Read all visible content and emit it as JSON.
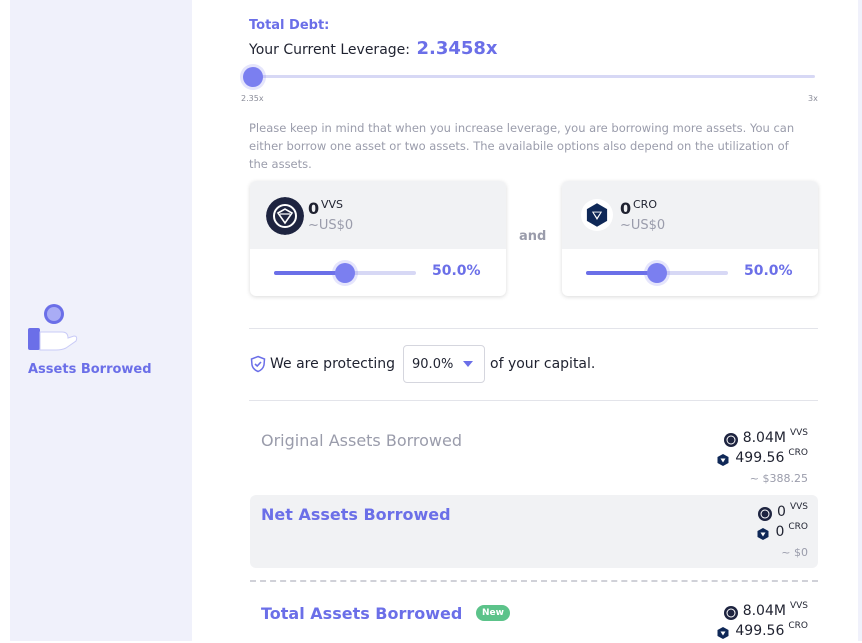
{
  "sidebar": {
    "label": "Assets Borrowed",
    "icon": "hand-holding-coin-icon"
  },
  "leverage": {
    "total_debt_label": "Total Debt:",
    "current_label": "Your Current Leverage:",
    "current_value": "2.3458x",
    "min_label": "2.35x",
    "max_label": "3x",
    "slider_fraction": 0.0
  },
  "note": "Please keep in mind that when you increase leverage, you are borrowing more assets. You can either borrow one asset or two assets. The availabile options also depend on the utilization of the assets.",
  "borrow": {
    "and_label": "and",
    "assets": [
      {
        "amount": "0",
        "symbol": "VVS",
        "usd": "~US$0",
        "percent_label": "50.0%",
        "percent": 0.5,
        "icon": "vvs-coin-icon"
      },
      {
        "amount": "0",
        "symbol": "CRO",
        "usd": "~US$0",
        "percent_label": "50.0%",
        "percent": 0.5,
        "icon": "cro-coin-icon"
      }
    ]
  },
  "protect": {
    "prefix": "We are protecting",
    "value": "90.0%",
    "suffix": "of your capital."
  },
  "summary": {
    "original": {
      "title": "Original Assets Borrowed",
      "vvs_amount": "8.04M",
      "vvs_symbol": "VVS",
      "cro_amount": "499.56",
      "cro_symbol": "CRO",
      "usd": "~ $388.25"
    },
    "net": {
      "title": "Net Assets Borrowed",
      "vvs_amount": "0",
      "vvs_symbol": "VVS",
      "cro_amount": "0",
      "cro_symbol": "CRO",
      "usd": "~ $0"
    },
    "total": {
      "title": "Total Assets Borrowed",
      "badge": "New",
      "vvs_amount": "8.04M",
      "vvs_symbol": "VVS",
      "cro_amount": "499.56",
      "cro_symbol": "CRO"
    }
  },
  "colors": {
    "accent": "#6b6fe8",
    "sidebar_bg": "#f0f1fb",
    "muted": "#9a9cab",
    "badge": "#5cc38a"
  }
}
